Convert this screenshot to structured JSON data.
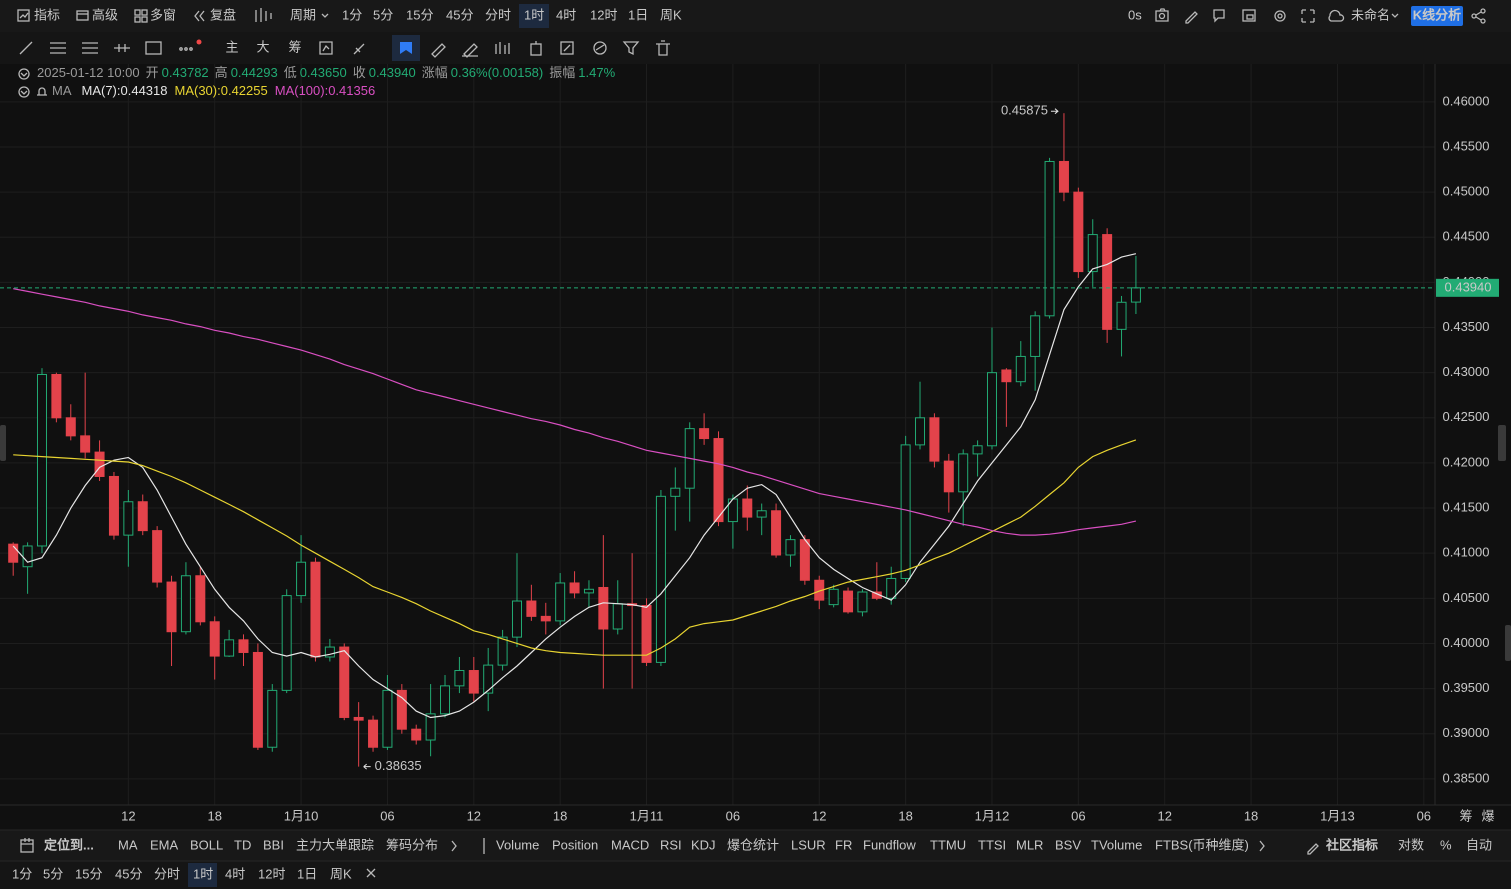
{
  "toolbar": {
    "items": [
      "指标",
      "高级",
      "多窗",
      "复盘"
    ],
    "period": "周期",
    "timeframes": [
      "1分",
      "5分",
      "15分",
      "45分",
      "分时",
      "1时",
      "4时",
      "12时",
      "1日",
      "周K"
    ],
    "active": 5,
    "timer": "0s",
    "layout_name": "未命名",
    "button": "K线分析"
  },
  "tools": [
    "主",
    "大",
    "筹"
  ],
  "legend": {
    "time": "2025-01-12 10:00",
    "fields": [
      {
        "label": "开",
        "value": "0.43782"
      },
      {
        "label": "高",
        "value": "0.44293"
      },
      {
        "label": "低",
        "value": "0.43650"
      },
      {
        "label": "收",
        "value": "0.43940"
      },
      {
        "label": "涨幅",
        "value": "0.36%(0.00158)"
      },
      {
        "label": "振幅",
        "value": "1.47%"
      }
    ],
    "ma_label": "MA"
  },
  "chart_data": {
    "type": "candlestick",
    "up_color": "#22ab74",
    "down_color": "#e3434b",
    "xlim": [
      -0.5,
      98.5
    ],
    "xticks": [
      {
        "value": 8,
        "label": "12"
      },
      {
        "value": 14,
        "label": "18"
      },
      {
        "value": 20,
        "label": "1月10"
      },
      {
        "value": 26,
        "label": "06"
      },
      {
        "value": 32,
        "label": "12"
      },
      {
        "value": 38,
        "label": "18"
      },
      {
        "value": 44,
        "label": "1月11"
      },
      {
        "value": 50,
        "label": "06"
      },
      {
        "value": 56,
        "label": "12"
      },
      {
        "value": 62,
        "label": "18"
      },
      {
        "value": 68,
        "label": "1月12"
      },
      {
        "value": 74,
        "label": "06"
      },
      {
        "value": 80,
        "label": "12"
      },
      {
        "value": 86,
        "label": "18"
      },
      {
        "value": 92,
        "label": "1月13"
      },
      {
        "value": 98,
        "label": "06"
      }
    ],
    "ylim": [
      0.3821,
      0.4642
    ],
    "yticks": [
      {
        "value": 0.385,
        "label": "0.38500"
      },
      {
        "value": 0.39,
        "label": "0.39000"
      },
      {
        "value": 0.395,
        "label": "0.39500"
      },
      {
        "value": 0.4,
        "label": "0.40000"
      },
      {
        "value": 0.405,
        "label": "0.40500"
      },
      {
        "value": 0.41,
        "label": "0.41000"
      },
      {
        "value": 0.415,
        "label": "0.41500"
      },
      {
        "value": 0.42,
        "label": "0.42000"
      },
      {
        "value": 0.425,
        "label": "0.42500"
      },
      {
        "value": 0.43,
        "label": "0.43000"
      },
      {
        "value": 0.435,
        "label": "0.43500"
      },
      {
        "value": 0.44,
        "label": "0.44000"
      },
      {
        "value": 0.445,
        "label": "0.44500"
      },
      {
        "value": 0.45,
        "label": "0.45000"
      },
      {
        "value": 0.455,
        "label": "0.45500"
      },
      {
        "value": 0.46,
        "label": "0.46000"
      }
    ],
    "grid": true,
    "open": [
      0.411,
      0.4085,
      0.4108,
      0.4298,
      0.425,
      0.423,
      0.4212,
      0.4185,
      0.412,
      0.4157,
      0.4125,
      0.4068,
      0.4013,
      0.4075,
      0.4024,
      0.3986,
      0.4004,
      0.399,
      0.3885,
      0.3948,
      0.4053,
      0.409,
      0.3985,
      0.3996,
      0.3918,
      0.3915,
      0.3885,
      0.3948,
      0.3905,
      0.3893,
      0.3922,
      0.3953,
      0.397,
      0.3945,
      0.3976,
      0.4007,
      0.4047,
      0.403,
      0.4025,
      0.4067,
      0.4056,
      0.4062,
      0.4016,
      0.4044,
      0.4042,
      0.3979,
      0.4163,
      0.4172,
      0.4238,
      0.4227,
      0.4135,
      0.416,
      0.414,
      0.4147,
      0.4098,
      0.4115,
      0.407,
      0.4043,
      0.4058,
      0.4035,
      0.4057,
      0.405,
      0.4072,
      0.422,
      0.425,
      0.4202,
      0.4168,
      0.421,
      0.4219,
      0.4303,
      0.429,
      0.4318,
      0.4363,
      0.4534,
      0.45,
      0.4412,
      0.4453,
      0.4348,
      0.43782
    ],
    "high": [
      0.4112,
      0.4112,
      0.4305,
      0.43,
      0.4265,
      0.43,
      0.4225,
      0.419,
      0.417,
      0.4165,
      0.413,
      0.4075,
      0.409,
      0.4085,
      0.403,
      0.4015,
      0.401,
      0.4,
      0.3955,
      0.406,
      0.412,
      0.4095,
      0.4005,
      0.4,
      0.3935,
      0.392,
      0.3965,
      0.3955,
      0.391,
      0.3955,
      0.3965,
      0.3985,
      0.3985,
      0.3995,
      0.4015,
      0.41,
      0.4065,
      0.4045,
      0.4078,
      0.408,
      0.407,
      0.412,
      0.407,
      0.41,
      0.405,
      0.417,
      0.4195,
      0.4245,
      0.4255,
      0.4235,
      0.4165,
      0.4175,
      0.4155,
      0.4155,
      0.412,
      0.412,
      0.4075,
      0.4065,
      0.4062,
      0.406,
      0.409,
      0.4085,
      0.423,
      0.429,
      0.4255,
      0.421,
      0.4215,
      0.4225,
      0.435,
      0.4305,
      0.4335,
      0.4368,
      0.4538,
      0.45875,
      0.4505,
      0.447,
      0.446,
      0.4385,
      0.44293
    ],
    "low": [
      0.4075,
      0.4055,
      0.41,
      0.4245,
      0.4225,
      0.4205,
      0.418,
      0.4115,
      0.4085,
      0.412,
      0.4062,
      0.3975,
      0.401,
      0.402,
      0.396,
      0.3985,
      0.3975,
      0.3882,
      0.388,
      0.3945,
      0.4045,
      0.398,
      0.398,
      0.3915,
      0.38635,
      0.388,
      0.3882,
      0.39,
      0.3888,
      0.3875,
      0.3918,
      0.3945,
      0.3935,
      0.3925,
      0.397,
      0.3996,
      0.4025,
      0.401,
      0.402,
      0.405,
      0.404,
      0.395,
      0.401,
      0.395,
      0.3975,
      0.3975,
      0.4125,
      0.4135,
      0.422,
      0.413,
      0.4105,
      0.4125,
      0.412,
      0.4095,
      0.4085,
      0.4065,
      0.4038,
      0.404,
      0.4033,
      0.403,
      0.4048,
      0.4043,
      0.4068,
      0.4215,
      0.4195,
      0.4145,
      0.413,
      0.4185,
      0.4215,
      0.424,
      0.4285,
      0.428,
      0.436,
      0.449,
      0.4405,
      0.4395,
      0.4333,
      0.4318,
      0.4365
    ],
    "close": [
      0.409,
      0.4108,
      0.4298,
      0.425,
      0.423,
      0.4212,
      0.4185,
      0.412,
      0.4157,
      0.4125,
      0.4068,
      0.4013,
      0.4075,
      0.4024,
      0.3986,
      0.4004,
      0.399,
      0.3885,
      0.3948,
      0.4053,
      0.409,
      0.3985,
      0.3996,
      0.3918,
      0.3915,
      0.3885,
      0.3948,
      0.3905,
      0.3893,
      0.3922,
      0.3953,
      0.397,
      0.3945,
      0.3976,
      0.4007,
      0.4047,
      0.403,
      0.4025,
      0.4067,
      0.4056,
      0.406,
      0.4016,
      0.4044,
      0.4042,
      0.3979,
      0.4163,
      0.4172,
      0.4238,
      0.4227,
      0.4135,
      0.416,
      0.414,
      0.4147,
      0.4098,
      0.4115,
      0.407,
      0.4048,
      0.406,
      0.4035,
      0.4057,
      0.405,
      0.4072,
      0.422,
      0.425,
      0.4202,
      0.4168,
      0.421,
      0.4219,
      0.43,
      0.429,
      0.4318,
      0.4363,
      0.4534,
      0.45,
      0.4412,
      0.4453,
      0.4348,
      0.4378,
      0.4394
    ],
    "series": [
      {
        "legend": "MA(7):0.44318",
        "color": "#e6e6e6",
        "values": [
          0.4108,
          0.409,
          0.4095,
          0.412,
          0.415,
          0.4175,
          0.4195,
          0.4203,
          0.4206,
          0.4195,
          0.417,
          0.414,
          0.411,
          0.4085,
          0.406,
          0.404,
          0.4025,
          0.4005,
          0.399,
          0.3986,
          0.399,
          0.3985,
          0.3988,
          0.3992,
          0.3975,
          0.396,
          0.395,
          0.394,
          0.3925,
          0.3918,
          0.392,
          0.3925,
          0.3935,
          0.3948,
          0.3962,
          0.3975,
          0.399,
          0.4005,
          0.4018,
          0.403,
          0.404,
          0.4045,
          0.4044,
          0.4043,
          0.404,
          0.4055,
          0.4075,
          0.4095,
          0.412,
          0.414,
          0.416,
          0.4172,
          0.4176,
          0.4165,
          0.414,
          0.4115,
          0.4095,
          0.4082,
          0.4072,
          0.4062,
          0.4055,
          0.4048,
          0.4065,
          0.409,
          0.411,
          0.413,
          0.4155,
          0.418,
          0.42,
          0.422,
          0.424,
          0.427,
          0.432,
          0.437,
          0.4395,
          0.4415,
          0.442,
          0.4428,
          0.44318
        ]
      },
      {
        "legend": "MA(30):0.42255",
        "color": "#e8d431",
        "values": [
          0.4209,
          0.4208,
          0.4207,
          0.4206,
          0.4205,
          0.4204,
          0.4203,
          0.4202,
          0.4201,
          0.4197,
          0.4191,
          0.4185,
          0.4178,
          0.417,
          0.4162,
          0.4154,
          0.4146,
          0.4137,
          0.4128,
          0.4119,
          0.4109,
          0.41,
          0.4091,
          0.4082,
          0.4073,
          0.4063,
          0.4057,
          0.4051,
          0.4044,
          0.4036,
          0.4029,
          0.4022,
          0.4014,
          0.401,
          0.4005,
          0.4,
          0.3995,
          0.3992,
          0.399,
          0.3989,
          0.3988,
          0.3987,
          0.3987,
          0.3987,
          0.3987,
          0.3995,
          0.4005,
          0.4018,
          0.4022,
          0.4024,
          0.4026,
          0.4031,
          0.4036,
          0.4041,
          0.4047,
          0.4052,
          0.4058,
          0.4063,
          0.4068,
          0.4071,
          0.4074,
          0.4077,
          0.4081,
          0.4087,
          0.4094,
          0.41,
          0.4108,
          0.4116,
          0.4124,
          0.4132,
          0.414,
          0.4152,
          0.4165,
          0.4178,
          0.4195,
          0.4207,
          0.4214,
          0.422,
          0.42255
        ]
      },
      {
        "legend": "MA(100):0.41356",
        "color": "#d94fc2",
        "values": [
          0.4393,
          0.439,
          0.4387,
          0.4384,
          0.4381,
          0.4378,
          0.4374,
          0.4371,
          0.4368,
          0.4364,
          0.4361,
          0.4358,
          0.4354,
          0.4351,
          0.4347,
          0.4344,
          0.434,
          0.4337,
          0.4333,
          0.4329,
          0.4325,
          0.432,
          0.4315,
          0.4309,
          0.4304,
          0.4299,
          0.4293,
          0.4287,
          0.4281,
          0.4277,
          0.4273,
          0.4269,
          0.4265,
          0.4261,
          0.4257,
          0.4253,
          0.4249,
          0.4246,
          0.4242,
          0.4237,
          0.4233,
          0.4228,
          0.4224,
          0.4219,
          0.4214,
          0.4211,
          0.4208,
          0.4205,
          0.4202,
          0.4199,
          0.4195,
          0.419,
          0.4186,
          0.4181,
          0.4176,
          0.4171,
          0.4166,
          0.4163,
          0.416,
          0.4157,
          0.4154,
          0.4151,
          0.4148,
          0.4144,
          0.414,
          0.4136,
          0.4132,
          0.4129,
          0.4125,
          0.4122,
          0.412,
          0.412,
          0.4121,
          0.4123,
          0.4126,
          0.4128,
          0.413,
          0.4132,
          0.41356
        ]
      }
    ],
    "last_price": {
      "value": 0.4394,
      "label": "0.43940"
    },
    "axis_corner": [
      "筹",
      "爆"
    ]
  },
  "indicator_bar": {
    "locate": "定位到...",
    "main": [
      "MA",
      "EMA",
      "BOLL",
      "TD",
      "BBI",
      "主力大单跟踪",
      "筹码分布"
    ],
    "active_main": 0,
    "sub": [
      "Volume",
      "Position",
      "MACD",
      "RSI",
      "KDJ",
      "爆仓统计",
      "LSUR",
      "FR",
      "Fundflow",
      "TTMU",
      "TTSI",
      "MLR",
      "BSV",
      "TVolume",
      "FTBS(币种维度)"
    ],
    "community": "社区指标",
    "log": "对数",
    "percent": "%",
    "auto": "自动"
  },
  "bottom_timeframes": {
    "items": [
      "1分",
      "5分",
      "15分",
      "45分",
      "分时",
      "1时",
      "4时",
      "12时",
      "1日",
      "周K"
    ],
    "active": 5
  }
}
